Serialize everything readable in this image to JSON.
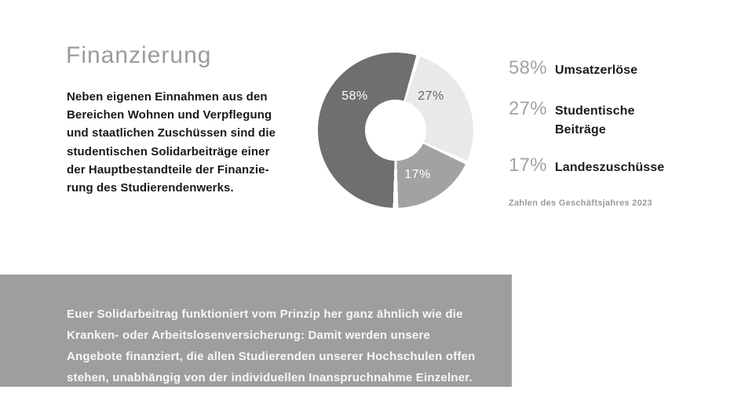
{
  "page": {
    "title": "Finanzierung",
    "intro_lines": [
      "Neben eigenen Einnahmen aus den",
      "Bereichen Wohnen und Verpflegung",
      "und staatlichen Zuschüssen sind die",
      "studentischen Solidarbeiträge einer",
      "der Hauptbestandteile der Finanzie-",
      "rung des Studierendenwerks."
    ]
  },
  "chart_data": {
    "type": "pie",
    "subtype": "donut",
    "title": "",
    "slices": [
      {
        "label": "Umsatzerlöse",
        "value": 58,
        "pct_label": "58%",
        "color": "#6f6f6f"
      },
      {
        "label": "Studentische Beiträge",
        "value": 27,
        "pct_label": "27%",
        "color": "#e9e9e9"
      },
      {
        "label": "Landeszuschüsse",
        "value": 17,
        "pct_label": "17%",
        "color": "#a2a2a2"
      }
    ],
    "legend_position": "right",
    "footnote": "Zahlen des Geschäftsjahres 2023"
  },
  "callout": {
    "lines": [
      "Euer Solidarbeitrag funktioniert vom Prinzip her ganz ähnlich wie die",
      "Kranken- oder Arbeitslosenversicherung: Damit werden unsere",
      "Angebote finanziert, die allen Studierenden unserer Hochschulen offen",
      "stehen, unabhängig von der individuellen Inanspruchnahme Einzelner."
    ]
  },
  "colors": {
    "title_gray": "#9b9b9b",
    "text_dark": "#1a1a1a",
    "legend_pct_gray": "#a3a3a3",
    "callout_bg": "#9e9e9e",
    "callout_text": "#f7f7f7",
    "slice_dark": "#6f6f6f",
    "slice_light": "#e9e9e9",
    "slice_medium": "#a2a2a2",
    "gap_white": "#ffffff"
  }
}
